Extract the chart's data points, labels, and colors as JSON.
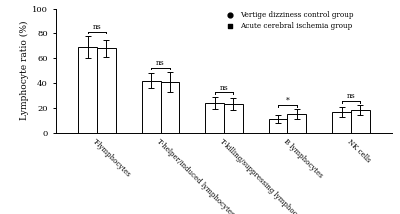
{
  "categories": [
    "T-lymphocytes",
    "T-helper/induced lymphocytes",
    "T-killing/suppressing lymphocytes",
    "B lymphocytes",
    "NK cells"
  ],
  "group1_values": [
    69,
    42,
    24,
    11,
    17
  ],
  "group2_values": [
    68,
    41,
    23,
    15,
    18
  ],
  "group1_errors": [
    9,
    6,
    5,
    3,
    4
  ],
  "group2_errors": [
    7,
    8,
    5,
    4,
    4
  ],
  "significance": [
    "ns",
    "ns",
    "ns",
    "*",
    "ns"
  ],
  "bar_width": 0.25,
  "group1_color": "white",
  "group2_color": "white",
  "bar_edgecolor": "black",
  "ylim": [
    0,
    100
  ],
  "yticks": [
    0,
    20,
    40,
    60,
    80,
    100
  ],
  "ylabel": "Lymphocyte ratio (%)",
  "legend_labels": [
    "Vertige dizziness control group",
    "Acute cerebral ischemia group"
  ],
  "legend_markers": [
    "o",
    "s"
  ],
  "background_color": "white",
  "figsize": [
    4.0,
    2.14
  ],
  "dpi": 100
}
